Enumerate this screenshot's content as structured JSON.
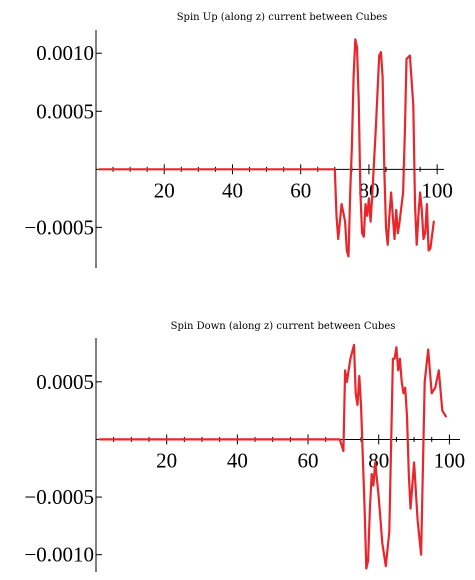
{
  "chart_data": [
    {
      "type": "line",
      "title": "Spin Up (along z) current between Cubes",
      "xlabel": "",
      "ylabel": "",
      "xlim": [
        0,
        102
      ],
      "ylim": [
        -0.00085,
        0.0012
      ],
      "x_ticks": [
        20,
        40,
        60,
        80,
        100
      ],
      "x_tick_labels": [
        "20",
        "40",
        "60",
        "80",
        "100"
      ],
      "y_ticks": [
        0.001,
        0.0005,
        -0.0005
      ],
      "y_tick_labels": [
        "0.0010",
        "0.0005",
        "−0.0005"
      ],
      "grid": false,
      "series_color": "#e8262b",
      "series": [
        {
          "x": [
            1,
            70,
            70.5,
            71,
            72,
            73,
            73.5,
            74,
            74.5,
            75,
            75.5,
            76,
            76.5,
            77,
            77.5,
            78,
            78.5,
            79,
            79.5,
            80,
            80.5,
            81,
            82,
            83,
            83.5,
            84,
            84.5,
            85,
            85.5,
            86,
            86.5,
            87,
            87.5,
            88,
            88.5,
            89,
            90,
            90.5,
            91,
            92,
            93,
            93.5,
            94,
            94.5,
            95,
            95.5,
            96,
            96.5,
            97,
            97.5,
            98,
            99
          ],
          "y": [
            0,
            0,
            -0.0004,
            -0.0006,
            -0.0003,
            -0.00045,
            -0.0007,
            -0.00075,
            -0.0002,
            0.0002,
            0.0008,
            0.00112,
            0.00105,
            0.0006,
            -0.0002,
            -0.00055,
            -0.00058,
            -0.0003,
            -0.0004,
            -0.00025,
            -0.00045,
            -0.0002,
            0.00035,
            0.00098,
            0.00101,
            0.0008,
            0.0,
            -0.0005,
            -0.00065,
            -0.0004,
            -0.0002,
            -0.0004,
            -0.0006,
            -0.00035,
            -0.00055,
            -0.00045,
            -0.0002,
            0.0003,
            0.00095,
            0.00098,
            0.00055,
            -0.0003,
            -0.00065,
            -0.0004,
            -0.0002,
            -0.00035,
            -0.0006,
            -0.00055,
            -0.0003,
            -0.0007,
            -0.00068,
            -0.00045
          ]
        }
      ]
    },
    {
      "type": "line",
      "title": "Spin Down (along z) current between Cubes",
      "xlabel": "",
      "ylabel": "",
      "xlim": [
        0,
        103
      ],
      "ylim": [
        -0.00115,
        0.00088
      ],
      "x_ticks": [
        20,
        40,
        60,
        80,
        100
      ],
      "x_tick_labels": [
        "20",
        "40",
        "60",
        "80",
        "100"
      ],
      "y_ticks": [
        0.0005,
        -0.0005,
        -0.001
      ],
      "y_tick_labels": [
        "0.0005",
        "−0.0005",
        "−0.0010"
      ],
      "grid": false,
      "series_color": "#e8262b",
      "series": [
        {
          "x": [
            1,
            69,
            70,
            70.5,
            71,
            72,
            73,
            73.5,
            74,
            74.5,
            75,
            76,
            76.5,
            77,
            77.5,
            78,
            78.5,
            79,
            79.5,
            80,
            80.5,
            81,
            82,
            83,
            84,
            84.5,
            85,
            85.5,
            86,
            86.5,
            87,
            87.5,
            88,
            88.5,
            89,
            89.5,
            90,
            91,
            92,
            93,
            94,
            95,
            96,
            97,
            98,
            99
          ],
          "y": [
            0,
            0,
            -0.0001,
            0.0006,
            0.0005,
            0.0007,
            0.00082,
            0.0004,
            0.0003,
            0.00055,
            0.0003,
            -0.0006,
            -0.00112,
            -0.00105,
            -0.0006,
            -0.0003,
            -0.0004,
            -0.0002,
            -0.00035,
            -0.0005,
            -0.0007,
            -0.0009,
            -0.0011,
            -0.0008,
            0.0007,
            0.0007,
            0.0008,
            0.0006,
            0.0007,
            0.0005,
            0.0004,
            0.00045,
            0.0002,
            -0.0003,
            -0.0006,
            -0.0004,
            -0.0002,
            -0.0007,
            -0.001,
            0.0005,
            0.00078,
            0.0004,
            0.00045,
            0.0006,
            0.00025,
            0.0002
          ]
        }
      ]
    }
  ]
}
